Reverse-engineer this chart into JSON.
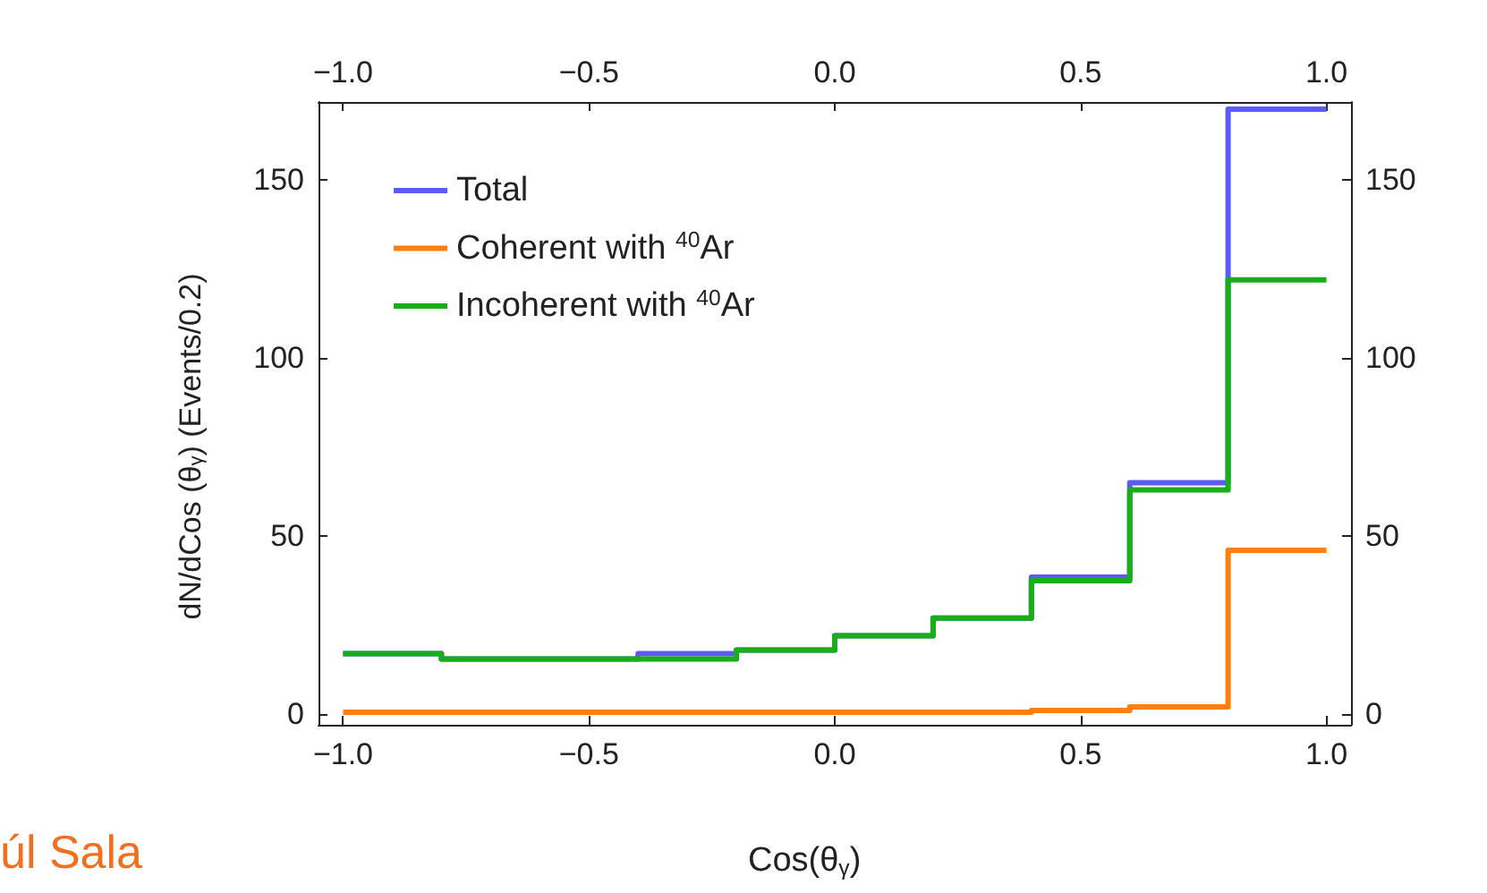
{
  "chart_data": {
    "type": "histogram",
    "xlabel": "Cos(θ$_{γ}$)",
    "ylabel": "dN/dCos (θ$_{γ}$) (Events/0.2)",
    "bins": [
      -1.0,
      -0.8,
      -0.6,
      -0.4,
      -0.2,
      0.0,
      0.2,
      0.4,
      0.6,
      0.8,
      1.0
    ],
    "series": [
      {
        "name": "Total",
        "color": "#5b5bf5",
        "values": [
          17,
          15.5,
          15.5,
          17,
          18,
          22,
          27,
          38.5,
          65,
          170
        ]
      },
      {
        "name": "Coherent with $^{40}$Ar",
        "color": "#ff7f0e",
        "values": [
          0.5,
          0.5,
          0.5,
          0.5,
          0.5,
          0.5,
          0.5,
          1,
          2,
          46
        ]
      },
      {
        "name": "Incoherent with $^{40}$Ar",
        "color": "#1aad1a",
        "values": [
          17,
          15.5,
          15.5,
          15.5,
          18,
          22,
          27,
          37.5,
          63,
          122
        ]
      }
    ],
    "xlim": [
      -1.05,
      1.05
    ],
    "xticks": [
      {
        "value": -1.0,
        "label": "−1.0"
      },
      {
        "value": -0.5,
        "label": "−0.5"
      },
      {
        "value": 0.0,
        "label": "0.0"
      },
      {
        "value": 0.5,
        "label": "0.5"
      },
      {
        "value": 1.0,
        "label": "1.0"
      }
    ],
    "x2lim": [
      -1.05,
      1.05
    ],
    "x2ticks": [
      {
        "value": -1.0,
        "label": "−1.0"
      },
      {
        "value": -0.5,
        "label": "−0.5"
      },
      {
        "value": 0.0,
        "label": "0.0"
      },
      {
        "value": 0.5,
        "label": "0.5"
      },
      {
        "value": 1.0,
        "label": "1.0"
      }
    ],
    "ylim": [
      -3,
      172
    ],
    "yticks": [
      0,
      50,
      100,
      150
    ],
    "y2lim": [
      -3,
      172
    ],
    "y2ticks": [
      0,
      50,
      100,
      150
    ],
    "grid": false,
    "legend": "top left",
    "annotations": [
      "úl Sala"
    ]
  }
}
